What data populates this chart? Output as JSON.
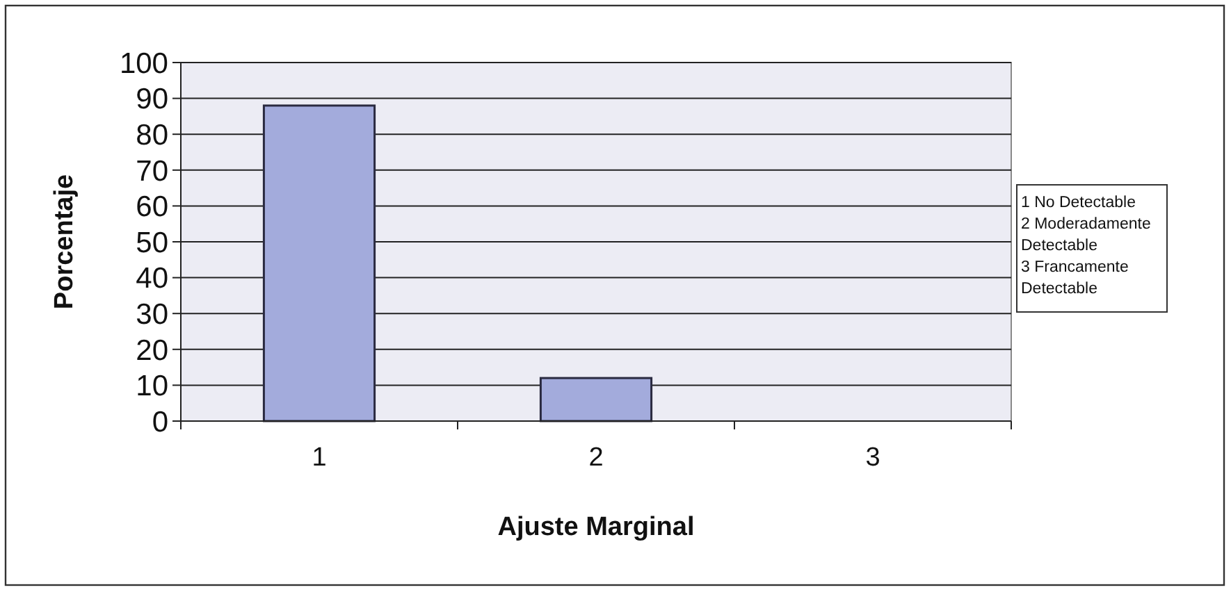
{
  "chart_data": {
    "type": "bar",
    "categories": [
      "1",
      "2",
      "3"
    ],
    "values": [
      88,
      12,
      0
    ],
    "color": "#a3abdc",
    "xlabel": "Ajuste Marginal",
    "ylabel": "Porcentaje",
    "ylim": [
      0,
      100
    ],
    "yticks": [
      0,
      10,
      20,
      30,
      40,
      50,
      60,
      70,
      80,
      90,
      100
    ],
    "grid": "y",
    "annotations": [
      "1 No Detectable",
      "2 Moderadamente Detectable",
      "3 Francamente Detectable"
    ]
  }
}
